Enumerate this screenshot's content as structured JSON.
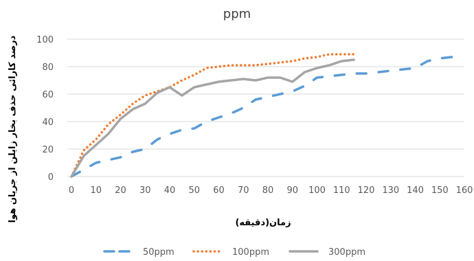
{
  "chart_data": {
    "type": "line",
    "title": "ppm",
    "xlabel": "زمان(دقیقه)",
    "ylabel": "درصد کارائی حذف بخار زایلن از جریان هوا",
    "xlim": [
      0,
      160
    ],
    "ylim": [
      0,
      100
    ],
    "xticks": [
      "0",
      "10",
      "20",
      "30",
      "40",
      "50",
      "60",
      "70",
      "80",
      "90",
      "100",
      "110",
      "120",
      "130",
      "140",
      "150",
      "160"
    ],
    "yticks": [
      "0",
      "20",
      "40",
      "60",
      "80",
      "100"
    ],
    "grid": "horizontal",
    "legend": "bottom",
    "series": [
      {
        "name": "50ppm",
        "color": "#5B9BD5",
        "style": "dash",
        "x": [
          0,
          10,
          20,
          25,
          30,
          35,
          40,
          45,
          50,
          55,
          60,
          65,
          70,
          75,
          80,
          85,
          90,
          95,
          100,
          105,
          110,
          115,
          120,
          125,
          130,
          135,
          140,
          145,
          150,
          155
        ],
        "y": [
          0,
          10,
          14,
          18,
          20,
          27,
          31,
          34,
          35,
          40,
          43,
          46,
          50,
          56,
          58,
          60,
          62,
          66,
          72,
          73,
          74,
          75,
          75,
          76,
          77,
          78,
          79,
          84,
          86,
          87
        ]
      },
      {
        "name": "100ppm",
        "color": "#ED7D31",
        "style": "dot",
        "x": [
          0,
          5,
          10,
          15,
          20,
          25,
          30,
          35,
          40,
          45,
          50,
          55,
          60,
          65,
          70,
          75,
          80,
          85,
          90,
          95,
          100,
          105,
          110,
          115
        ],
        "y": [
          0,
          19,
          27,
          38,
          45,
          53,
          59,
          62,
          65,
          70,
          74,
          79,
          80,
          81,
          81,
          81,
          82,
          83,
          84,
          86,
          87,
          89,
          89,
          89
        ]
      },
      {
        "name": "300ppm",
        "color": "#A5A5A5",
        "style": "solid",
        "x": [
          0,
          5,
          10,
          15,
          20,
          25,
          30,
          35,
          40,
          45,
          50,
          55,
          60,
          65,
          70,
          75,
          80,
          85,
          90,
          95,
          100,
          105,
          110,
          115
        ],
        "y": [
          0,
          15,
          23,
          31,
          42,
          49,
          53,
          61,
          65,
          59,
          65,
          67,
          69,
          70,
          71,
          70,
          72,
          72,
          69,
          76,
          79,
          81,
          84,
          85
        ]
      }
    ]
  }
}
